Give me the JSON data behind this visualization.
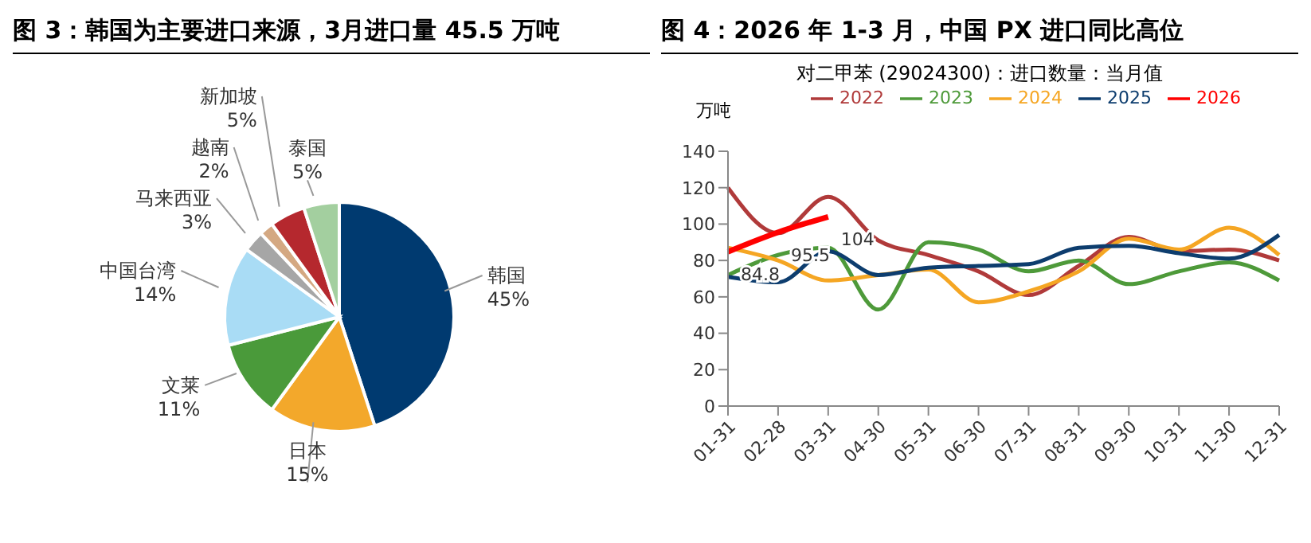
{
  "chart_data": [
    {
      "type": "pie",
      "title": "图 3：韩国为主要进口来源，3月进口量 45.5 万吨",
      "categories": [
        "韩国",
        "日本",
        "文莱",
        "中国台湾",
        "马来西亚",
        "越南",
        "新加坡",
        "泰国"
      ],
      "values": [
        45,
        15,
        11,
        14,
        3,
        2,
        5,
        5
      ],
      "value_labels": [
        "45%",
        "15%",
        "11%",
        "14%",
        "3%",
        "2%",
        "5%",
        "5%"
      ],
      "colors": [
        "#003a70",
        "#f3a82b",
        "#4a9a3a",
        "#a9dcf5",
        "#a6a6a6",
        "#d4a882",
        "#b5282e",
        "#a3cf9f"
      ],
      "legend": false
    },
    {
      "type": "line",
      "title": "图 4：2026 年 1-3 月，中国 PX 进口同比高位",
      "subtitle": "对二甲苯 (29024300)：进口数量：当月值",
      "ylabel": "万吨",
      "categories": [
        "01-31",
        "02-28",
        "03-31",
        "04-30",
        "05-31",
        "06-30",
        "07-31",
        "08-31",
        "09-30",
        "10-31",
        "11-30",
        "12-31"
      ],
      "ylim": [
        0,
        140
      ],
      "yticks": [
        0,
        20,
        40,
        60,
        80,
        100,
        120,
        140
      ],
      "grid": false,
      "legend": "top",
      "marker": "none",
      "series": [
        {
          "name": "2022",
          "color": "#b03a3a",
          "values": [
            120,
            95,
            115,
            91,
            83,
            74,
            61,
            77,
            93,
            85,
            86,
            80
          ]
        },
        {
          "name": "2023",
          "color": "#4e9a3a",
          "values": [
            72,
            83,
            87,
            53,
            90,
            86,
            74,
            80,
            67,
            74,
            79,
            69
          ]
        },
        {
          "name": "2024",
          "color": "#f5a623",
          "values": [
            87,
            80,
            69,
            72,
            75,
            57,
            63,
            74,
            92,
            86,
            98,
            83
          ]
        },
        {
          "name": "2025",
          "color": "#0d3d6e",
          "values": [
            71,
            68,
            85,
            72,
            76,
            77,
            78,
            87,
            88,
            84,
            81,
            94
          ]
        },
        {
          "name": "2026",
          "color": "#ff0000",
          "values": [
            84.8,
            95.5,
            104,
            null,
            null,
            null,
            null,
            null,
            null,
            null,
            null,
            null
          ],
          "value_labels": [
            "84.8",
            "95.5",
            "104",
            null,
            null,
            null,
            null,
            null,
            null,
            null,
            null,
            null
          ]
        }
      ]
    }
  ]
}
